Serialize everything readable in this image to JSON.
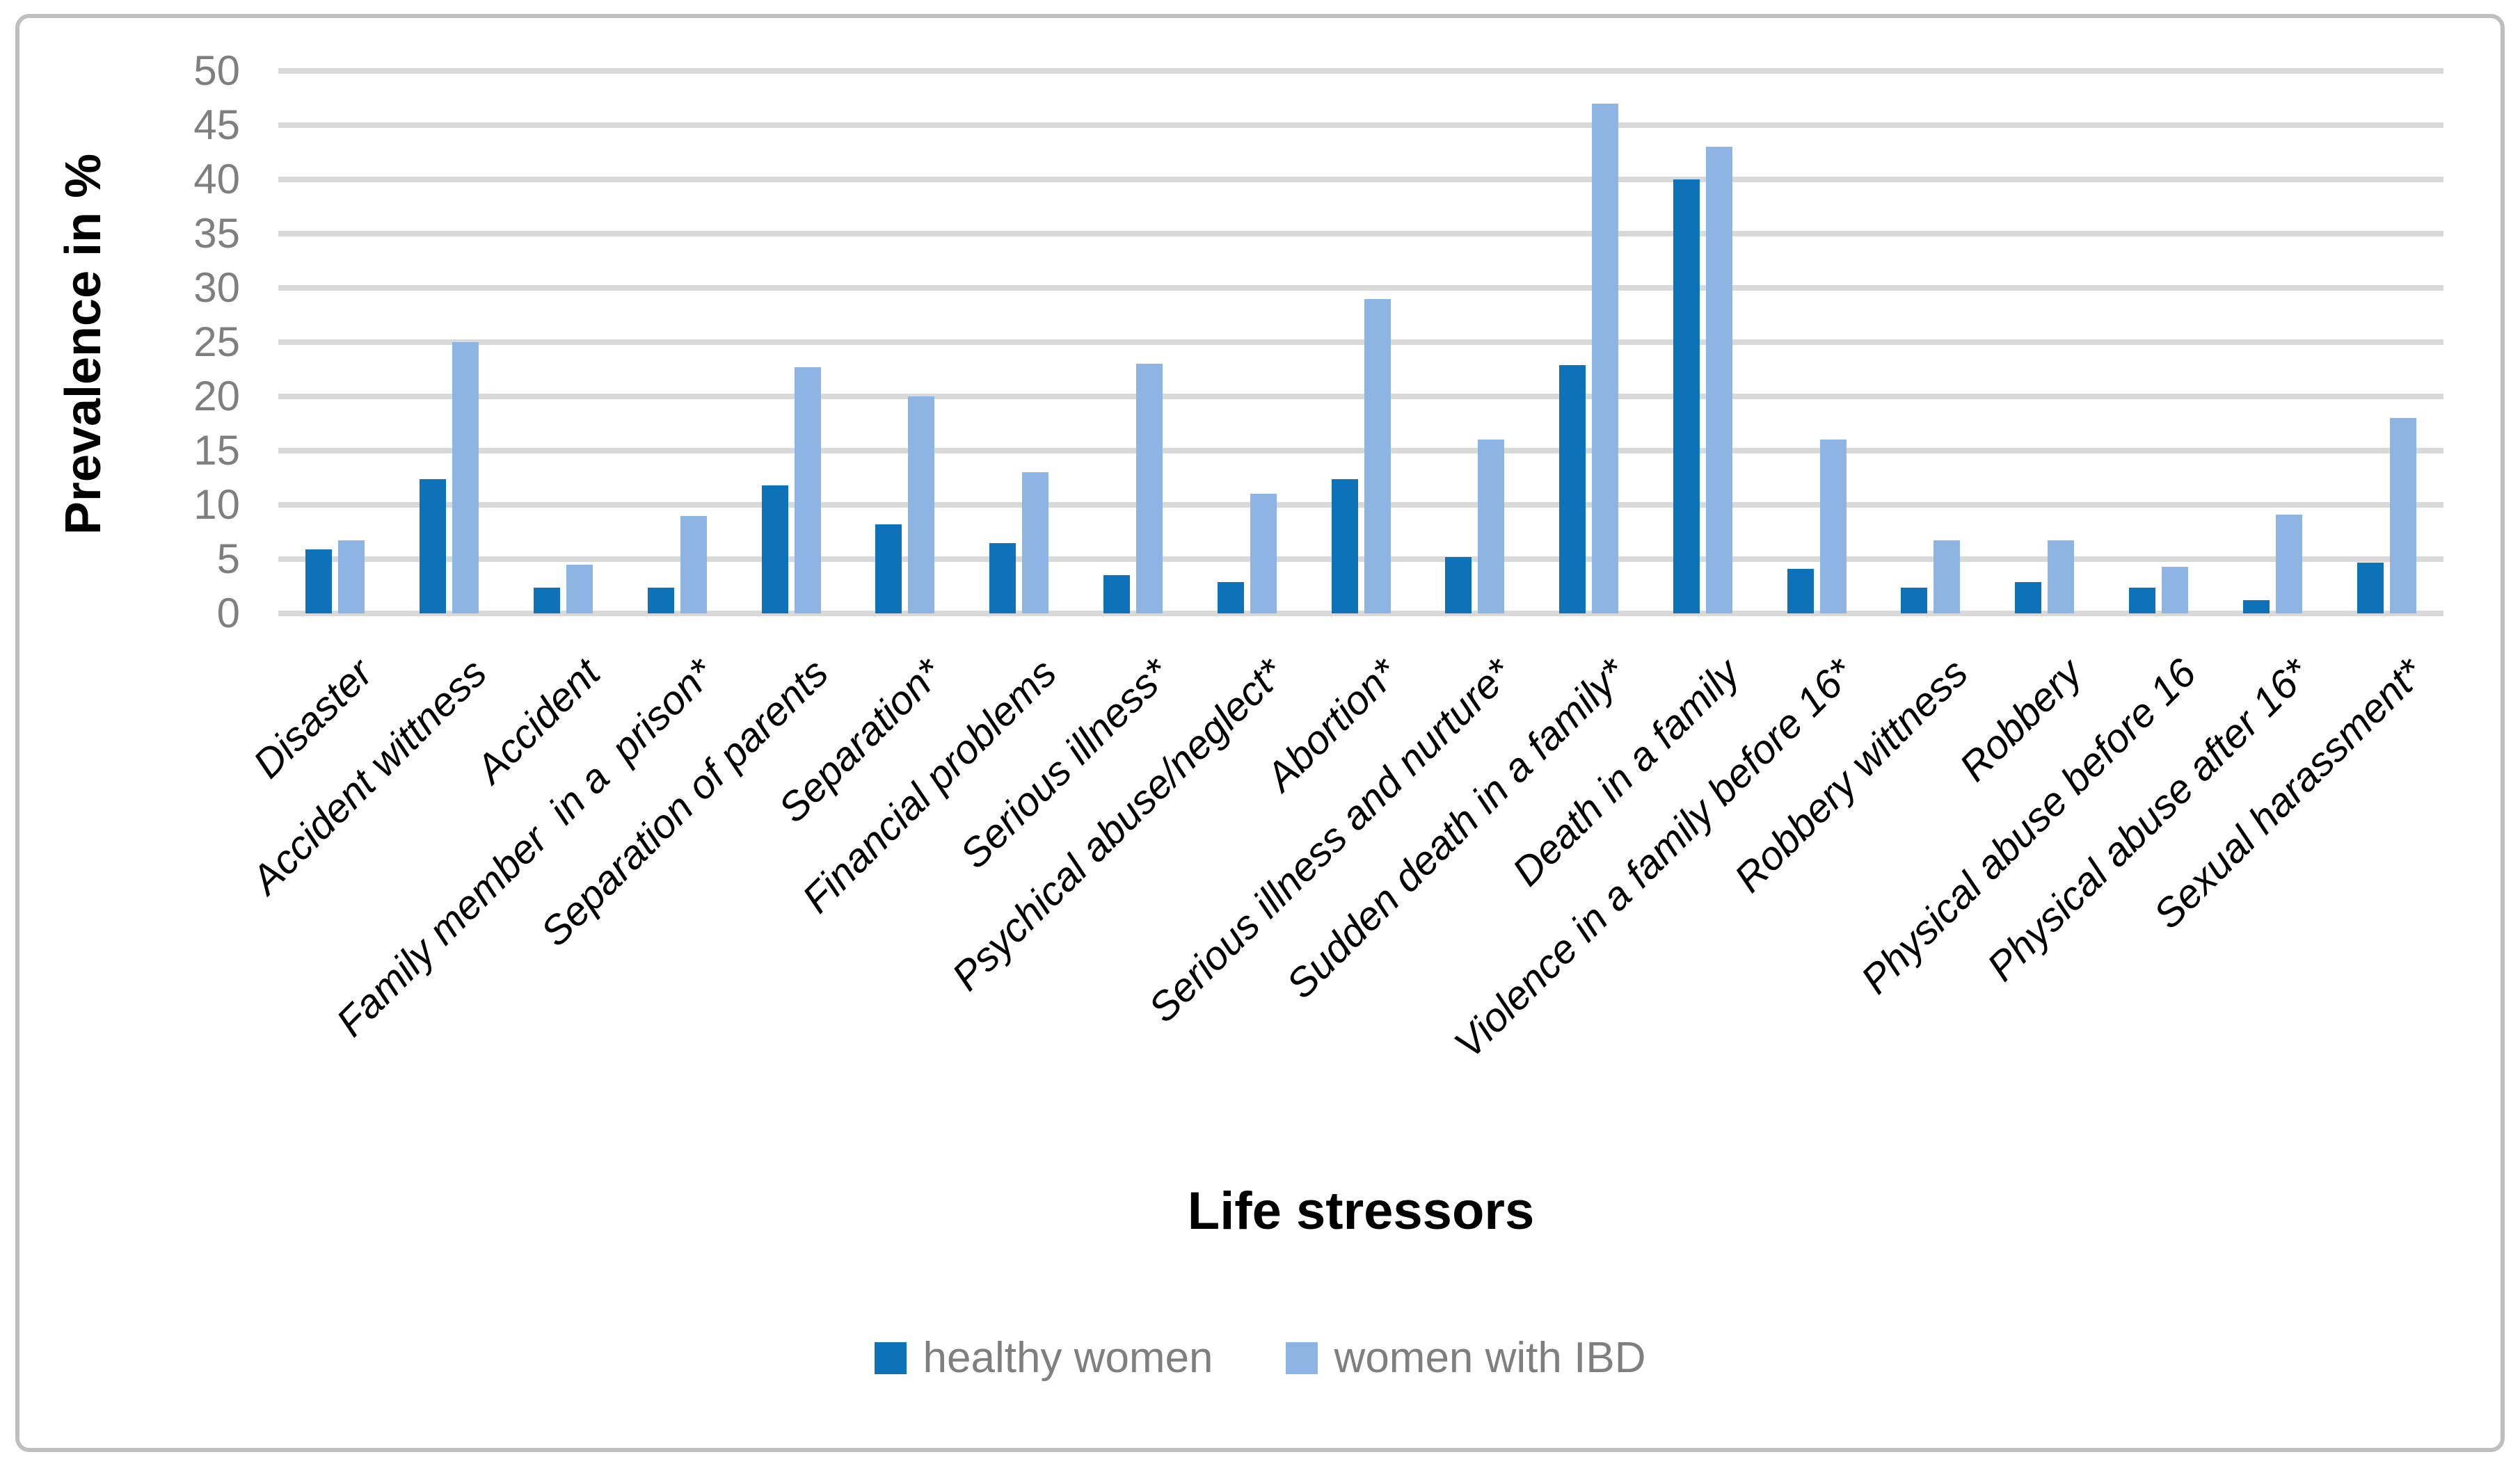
{
  "chart_data": {
    "type": "bar",
    "title": "",
    "xlabel": "Life stressors",
    "ylabel": "Prevalence in %",
    "ylim": [
      0,
      50
    ],
    "yticks": [
      0,
      5,
      10,
      15,
      20,
      25,
      30,
      35,
      40,
      45,
      50
    ],
    "grid": true,
    "legend_position": "bottom-center",
    "categories": [
      "Disaster",
      "Accident wittness",
      "Accident",
      "Family member  in a  prison*",
      "Separation of parents",
      "Separation*",
      "Financial problems",
      "Serious illness*",
      "Psychical abuse/neglect*",
      "Abortion*",
      "Serious illness and nurture*",
      "Sudden death in a family*",
      "Death in a family",
      "Violence in a family before 16*",
      "Robbery wittness",
      "Robbery",
      "Physical abuse before 16",
      "Physical abuse after 16*",
      "Sexual harassment*"
    ],
    "series": [
      {
        "name": "healthy women",
        "color": "#0d72b8",
        "values": [
          5.9,
          12.4,
          2.4,
          2.4,
          11.8,
          8.2,
          6.5,
          3.5,
          2.9,
          12.4,
          5.2,
          22.9,
          40,
          4.1,
          2.4,
          2.9,
          2.4,
          1.2,
          4.7
        ]
      },
      {
        "name": "women with IBD",
        "color": "#8db4e2",
        "values": [
          6.7,
          25,
          4.5,
          9,
          22.7,
          20,
          13,
          23,
          11,
          29,
          16,
          47,
          43,
          16,
          6.7,
          6.7,
          4.3,
          9.1,
          18
        ]
      }
    ]
  },
  "style": {
    "background": "#ffffff",
    "border_color": "#bfbfbf",
    "gridline_color": "#d9d9d9",
    "tick_label_color": "#7f7f7f",
    "legend_text_color": "#7f7f7f",
    "axis_title_color": "#000000"
  }
}
